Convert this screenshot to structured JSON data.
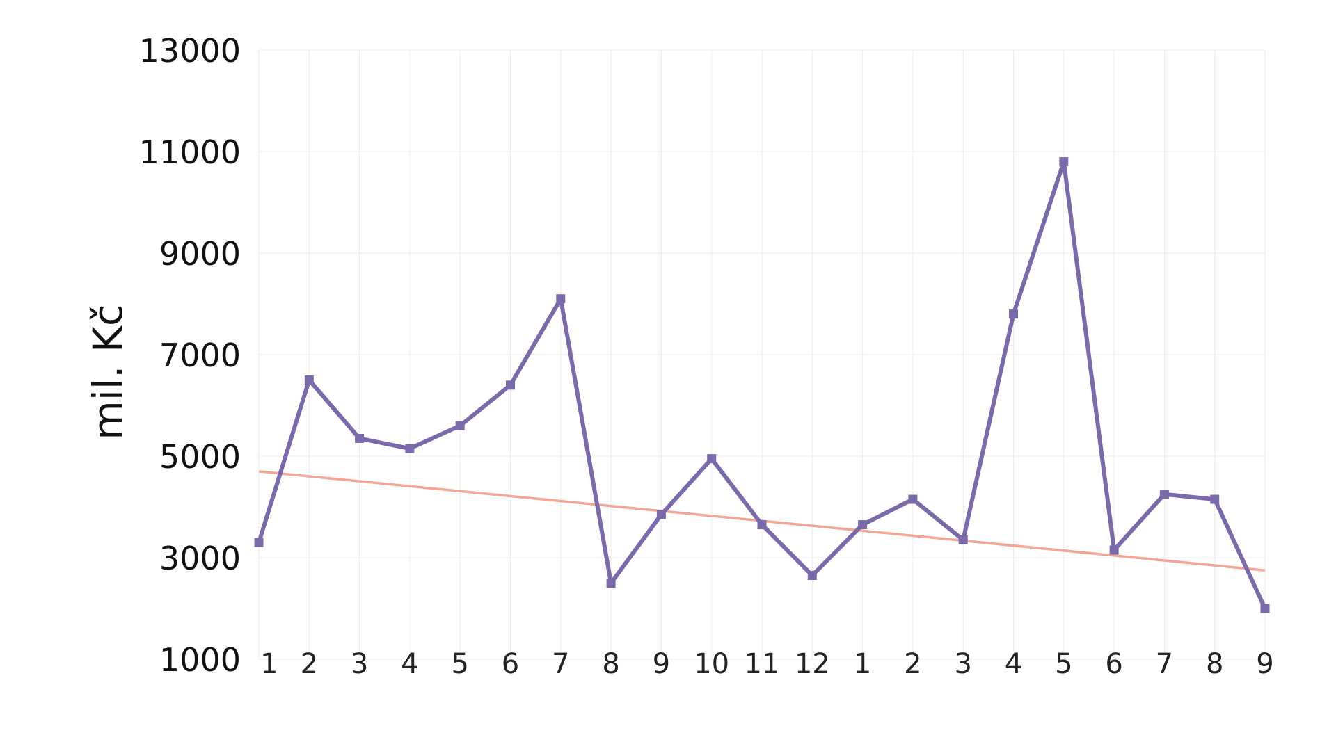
{
  "chart_data": {
    "type": "line",
    "title": "",
    "xlabel": "",
    "ylabel": "mil. Kč",
    "x": [
      "1",
      "2",
      "3",
      "4",
      "5",
      "6",
      "7",
      "8",
      "9",
      "10",
      "11",
      "12",
      "1",
      "2",
      "3",
      "4",
      "5",
      "6",
      "7",
      "8",
      "9"
    ],
    "series": [
      {
        "values": [
          3300,
          6500,
          5350,
          5150,
          5600,
          6400,
          8100,
          2500,
          3850,
          4950,
          3650,
          2650,
          3650,
          4150,
          3350,
          7800,
          10800,
          3150,
          4250,
          4150,
          2000
        ],
        "color": "#7b6aab"
      }
    ],
    "trendline": {
      "start": 4700,
      "end": 2750,
      "color": "#f2a693"
    },
    "ylim": [
      1000,
      13000
    ],
    "yticks": [
      1000,
      3000,
      5000,
      7000,
      9000,
      11000,
      13000
    ],
    "grid": true,
    "legend": "none"
  }
}
